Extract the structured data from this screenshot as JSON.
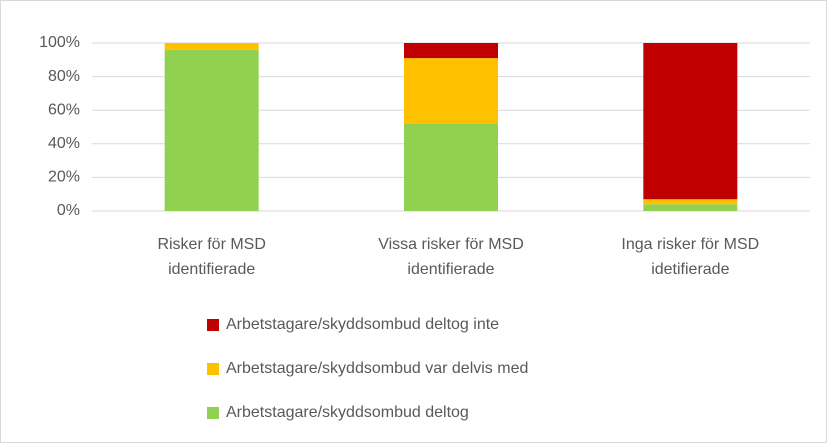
{
  "chart_data": {
    "type": "stacked_bar",
    "categories": [
      "Risker för MSD\nidentifierade",
      "Vissa risker för MSD\nidentifierade",
      "Inga risker för MSD\nidetifierade"
    ],
    "series": [
      {
        "name": "Arbetstagare/skyddsombud deltog",
        "color": "#92d050",
        "values": [
          96,
          52,
          4
        ]
      },
      {
        "name": "Arbetstagare/skyddsombud var delvis med",
        "color": "#ffc000",
        "values": [
          4,
          39,
          3
        ]
      },
      {
        "name": "Arbetstagare/skyddsombud deltog inte",
        "color": "#c00000",
        "values": [
          0,
          9,
          93
        ]
      }
    ],
    "ylim": [
      0,
      100
    ],
    "yticks": [
      {
        "value": 0,
        "label": "0%"
      },
      {
        "value": 20,
        "label": "20%"
      },
      {
        "value": 40,
        "label": "40%"
      },
      {
        "value": 60,
        "label": "60%"
      },
      {
        "value": 80,
        "label": "80%"
      },
      {
        "value": 100,
        "label": "100%"
      }
    ],
    "grid": true,
    "legend": "bottom"
  }
}
